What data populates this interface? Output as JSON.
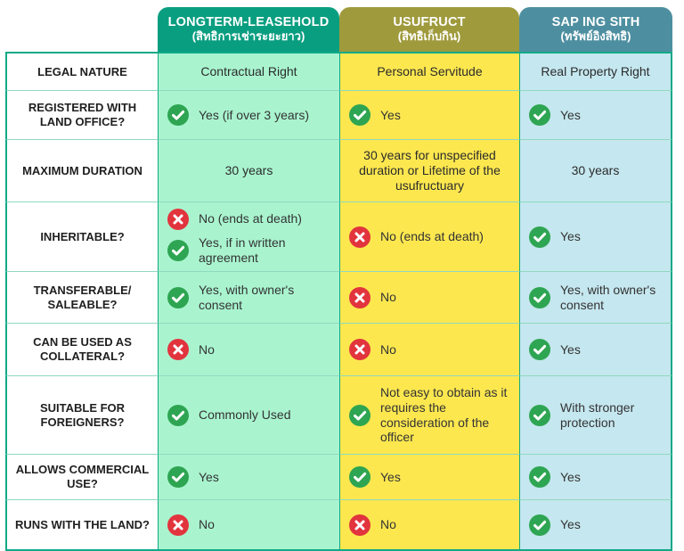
{
  "headers": [
    {
      "title": "LONGTERM-LEASEHOLD",
      "subtitle": "(สิทธิการเช่าระยะยาว)"
    },
    {
      "title": "USUFRUCT",
      "subtitle": "(สิทธิเก็บกิน)"
    },
    {
      "title": "SAP ING SITH",
      "subtitle": "(ทรัพย์อิงสิทธิ)"
    }
  ],
  "rows": [
    {
      "label": "LEGAL NATURE",
      "lease": {
        "text": "Contractual Right"
      },
      "usufruct": {
        "text": "Personal Servitude"
      },
      "sap": {
        "text": "Real Property Right"
      }
    },
    {
      "label": "REGISTERED WITH LAND OFFICE?",
      "lease": {
        "icon": "check-icon",
        "text": "Yes (if over 3 years)"
      },
      "usufruct": {
        "icon": "check-icon",
        "text": "Yes"
      },
      "sap": {
        "icon": "check-icon",
        "text": "Yes"
      }
    },
    {
      "label": "MAXIMUM DURATION",
      "lease": {
        "text": "30 years"
      },
      "usufruct": {
        "text": "30 years for unspecified duration or Lifetime of the usufructuary"
      },
      "sap": {
        "text": "30 years"
      }
    },
    {
      "label": "INHERITABLE?",
      "lease": [
        {
          "icon": "cross-icon",
          "text": "No (ends at death)"
        },
        {
          "icon": "check-icon",
          "text": "Yes, if in written agreement"
        }
      ],
      "usufruct": {
        "icon": "cross-icon",
        "text": "No (ends at death)"
      },
      "sap": {
        "icon": "check-icon",
        "text": "Yes"
      }
    },
    {
      "label": "TRANSFERABLE/ SALEABLE?",
      "lease": {
        "icon": "check-icon",
        "text": "Yes, with owner's consent"
      },
      "usufruct": {
        "icon": "cross-icon",
        "text": "No"
      },
      "sap": {
        "icon": "check-icon",
        "text": "Yes, with owner's consent"
      }
    },
    {
      "label": "CAN BE USED AS COLLATERAL?",
      "lease": {
        "icon": "cross-icon",
        "text": "No"
      },
      "usufruct": {
        "icon": "cross-icon",
        "text": "No"
      },
      "sap": {
        "icon": "check-icon",
        "text": "Yes"
      }
    },
    {
      "label": "SUITABLE FOR FOREIGNERS?",
      "lease": {
        "icon": "check-icon",
        "text": "Commonly Used"
      },
      "usufruct": {
        "icon": "check-icon",
        "text": "Not easy to obtain as it requires the consideration of the officer"
      },
      "sap": {
        "icon": "check-icon",
        "text": "With stronger protection"
      }
    },
    {
      "label": "ALLOWS COMMERCIAL USE?",
      "lease": {
        "icon": "check-icon",
        "text": "Yes"
      },
      "usufruct": {
        "icon": "check-icon",
        "text": "Yes"
      },
      "sap": {
        "icon": "check-icon",
        "text": "Yes"
      }
    },
    {
      "label": "RUNS WITH THE LAND?",
      "lease": {
        "icon": "cross-icon",
        "text": "No"
      },
      "usufruct": {
        "icon": "cross-icon",
        "text": "No"
      },
      "sap": {
        "icon": "check-icon",
        "text": "Yes"
      }
    }
  ],
  "colors": {
    "lease_header": "#0a9e80",
    "usufruct_header": "#9f9a3c",
    "sap_header": "#4d8fa0",
    "lease_cell": "#a9f4cf",
    "usufruct_cell": "#fce74f",
    "sap_cell": "#c5e7ef",
    "check": "#2ea552",
    "cross": "#e2343d",
    "border": "#10a988"
  }
}
